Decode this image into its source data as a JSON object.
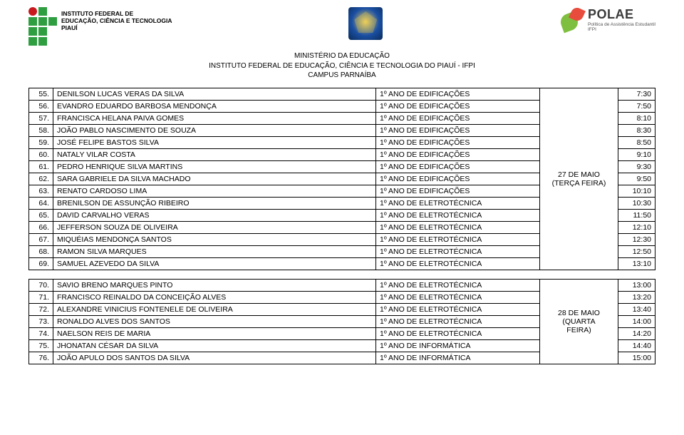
{
  "header": {
    "inst_line1": "INSTITUTO FEDERAL DE",
    "inst_line2": "EDUCAÇÃO, CIÊNCIA E TECNOLOGIA",
    "inst_line3": "PIAUÍ",
    "polae": "POLAE",
    "polae_sub1": "Política de Assistência Estudantil",
    "polae_sub2": "IFPI"
  },
  "title": {
    "line1": "MINISTÉRIO DA EDUCAÇÃO",
    "line2": "INSTITUTO FEDERAL DE EDUCAÇÃO, CIÊNCIA E TECNOLOGIA DO PIAUÍ - IFPI",
    "line3": "CAMPUS PARNAÍBA"
  },
  "block1": {
    "date_line1": "27 DE MAIO",
    "date_line2": "(TERÇA FEIRA)",
    "rows": [
      {
        "n": "55.",
        "name": "DENILSON LUCAS VERAS DA SILVA",
        "course": "1º ANO DE EDIFICAÇÕES",
        "time": "7:30"
      },
      {
        "n": "56.",
        "name": "EVANDRO EDUARDO BARBOSA MENDONÇA",
        "course": "1º ANO DE EDIFICAÇÕES",
        "time": "7:50"
      },
      {
        "n": "57.",
        "name": "FRANCISCA HELANA PAIVA GOMES",
        "course": "1º ANO DE EDIFICAÇÕES",
        "time": "8:10"
      },
      {
        "n": "58.",
        "name": "JOÃO PABLO NASCIMENTO DE SOUZA",
        "course": "1º ANO DE EDIFICAÇÕES",
        "time": "8:30"
      },
      {
        "n": "59.",
        "name": "JOSÉ FELIPE BASTOS SILVA",
        "course": "1º ANO DE EDIFICAÇÕES",
        "time": "8:50"
      },
      {
        "n": "60.",
        "name": "NATALY VILAR COSTA",
        "course": "1º ANO DE EDIFICAÇÕES",
        "time": "9:10"
      },
      {
        "n": "61.",
        "name": "PEDRO HENRIQUE SILVA MARTINS",
        "course": "1º ANO DE EDIFICAÇÕES",
        "time": "9:30"
      },
      {
        "n": "62.",
        "name": "SARA GABRIELE DA SILVA MACHADO",
        "course": "1º ANO DE EDIFICAÇÕES",
        "time": "9:50"
      },
      {
        "n": "63.",
        "name": "RENATO CARDOSO LIMA",
        "course": "1º ANO DE EDIFICAÇÕES",
        "time": "10:10"
      },
      {
        "n": "64.",
        "name": "BRENILSON DE ASSUNÇÃO RIBEIRO",
        "course": "1º ANO DE ELETROTÉCNICA",
        "time": "10:30"
      },
      {
        "n": "65.",
        "name": "DAVID CARVALHO VERAS",
        "course": "1º ANO DE ELETROTÉCNICA",
        "time": "11:50"
      },
      {
        "n": "66.",
        "name": "JEFFERSON SOUZA DE OLIVEIRA",
        "course": "1º ANO DE ELETROTÉCNICA",
        "time": "12:10"
      },
      {
        "n": "67.",
        "name": "MIQUÉIAS MENDONÇA SANTOS",
        "course": "1º ANO DE ELETROTÉCNICA",
        "time": "12:30"
      },
      {
        "n": "68.",
        "name": "RAMON SILVA MARQUES",
        "course": "1º ANO DE ELETROTÉCNICA",
        "time": "12:50"
      },
      {
        "n": "69.",
        "name": "SAMUEL AZEVEDO DA SILVA",
        "course": "1º ANO DE ELETROTÉCNICA",
        "time": "13:10"
      }
    ]
  },
  "block2": {
    "date_line1": "28 DE MAIO",
    "date_line2": "(QUARTA",
    "date_line3": "FEIRA)",
    "rows": [
      {
        "n": "70.",
        "name": "SAVIO BRENO MARQUES PINTO",
        "course": "1º ANO DE ELETROTÉCNICA",
        "time": "13:00"
      },
      {
        "n": "71.",
        "name": "FRANCISCO REINALDO DA CONCEIÇÃO ALVES",
        "course": "1º ANO DE ELETROTÉCNICA",
        "time": "13:20"
      },
      {
        "n": "72.",
        "name": "ALEXANDRE VINICIUS FONTENELE DE OLIVEIRA",
        "course": "1º ANO DE ELETROTÉCNICA",
        "time": "13:40"
      },
      {
        "n": "73.",
        "name": "RONALDO ALVES DOS SANTOS",
        "course": "1º ANO DE ELETROTÉCNICA",
        "time": "14:00"
      },
      {
        "n": "74.",
        "name": "NAELSON REIS DE MARIA",
        "course": "1º ANO DE ELETROTÉCNICA",
        "time": "14:20"
      },
      {
        "n": "75.",
        "name": "JHONATAN CÉSAR DA SILVA",
        "course": "1º ANO DE INFORMÁTICA",
        "time": "14:40"
      },
      {
        "n": "76.",
        "name": "JOÃO APULO DOS SANTOS DA SILVA",
        "course": "1º ANO DE INFORMÁTICA",
        "time": "15:00"
      }
    ]
  }
}
